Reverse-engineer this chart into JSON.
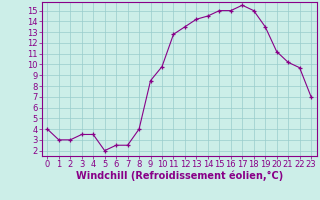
{
  "x": [
    0,
    1,
    2,
    3,
    4,
    5,
    6,
    7,
    8,
    9,
    10,
    11,
    12,
    13,
    14,
    15,
    16,
    17,
    18,
    19,
    20,
    21,
    22,
    23
  ],
  "y": [
    4.0,
    3.0,
    3.0,
    3.5,
    3.5,
    2.0,
    2.5,
    2.5,
    4.0,
    8.5,
    9.8,
    12.8,
    13.5,
    14.2,
    14.5,
    15.0,
    15.0,
    15.5,
    15.0,
    13.5,
    11.2,
    10.2,
    9.7,
    7.0
  ],
  "xlabel": "Windchill (Refroidissement éolien,°C)",
  "xlim": [
    -0.5,
    23.5
  ],
  "ylim": [
    1.5,
    15.8
  ],
  "yticks": [
    2,
    3,
    4,
    5,
    6,
    7,
    8,
    9,
    10,
    11,
    12,
    13,
    14,
    15
  ],
  "xticks": [
    0,
    1,
    2,
    3,
    4,
    5,
    6,
    7,
    8,
    9,
    10,
    11,
    12,
    13,
    14,
    15,
    16,
    17,
    18,
    19,
    20,
    21,
    22,
    23
  ],
  "line_color": "#880088",
  "marker": "+",
  "bg_color": "#cceee8",
  "grid_color": "#99cccc",
  "xlabel_fontsize": 7,
  "tick_fontsize": 6,
  "spine_color": "#880088"
}
